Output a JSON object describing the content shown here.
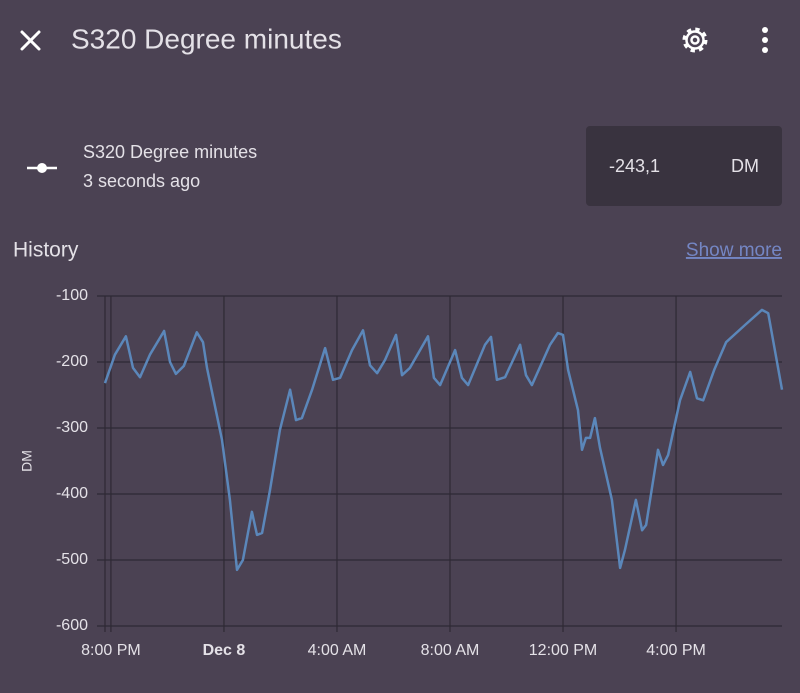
{
  "header": {
    "title": "S320 Degree minutes"
  },
  "entity": {
    "name": "S320 Degree minutes",
    "last_changed": "3 seconds ago",
    "state": "-243,1",
    "unit": "DM"
  },
  "history": {
    "title": "History",
    "show_more": "Show more"
  },
  "chart_data": {
    "type": "line",
    "ylabel": "DM",
    "x": [
      -4.21,
      -3.86,
      -3.47,
      -3.22,
      -2.97,
      -2.62,
      -2.12,
      -1.91,
      -1.7,
      -1.42,
      -0.96,
      -0.74,
      -0.6,
      -0.07,
      0.21,
      0.46,
      0.67,
      0.99,
      1.17,
      1.35,
      1.63,
      1.98,
      2.34,
      2.55,
      2.76,
      3.12,
      3.58,
      3.86,
      4.11,
      4.53,
      4.92,
      5.17,
      5.42,
      5.7,
      6.09,
      6.3,
      6.58,
      7.22,
      7.43,
      7.65,
      8.18,
      8.42,
      8.64,
      9.24,
      9.45,
      9.66,
      9.95,
      10.48,
      10.69,
      10.9,
      11.54,
      11.82,
      12.0,
      12.18,
      12.53,
      12.67,
      12.81,
      12.96,
      13.13,
      13.31,
      13.73,
      14.02,
      14.19,
      14.58,
      14.8,
      14.94,
      15.36,
      15.54,
      15.72,
      16.14,
      16.5,
      16.74,
      16.96,
      17.35,
      17.77,
      18.44,
      19.04,
      19.26,
      19.75
    ],
    "series": [
      {
        "color": "#5b87ba",
        "values": [
          -232,
          -189,
          -161,
          -209,
          -223,
          -189,
          -153,
          -200,
          -218,
          -206,
          -155,
          -170,
          -209,
          -318,
          -409,
          -515,
          -500,
          -427,
          -462,
          -459,
          -394,
          -303,
          -242,
          -288,
          -285,
          -242,
          -179,
          -227,
          -224,
          -182,
          -152,
          -205,
          -217,
          -197,
          -159,
          -220,
          -209,
          -161,
          -224,
          -235,
          -182,
          -224,
          -235,
          -174,
          -162,
          -227,
          -223,
          -174,
          -220,
          -235,
          -174,
          -156,
          -159,
          -212,
          -273,
          -333,
          -315,
          -315,
          -285,
          -330,
          -409,
          -512,
          -485,
          -409,
          -455,
          -447,
          -333,
          -356,
          -341,
          -258,
          -215,
          -255,
          -258,
          -212,
          -170,
          -144,
          -121,
          -126,
          -242
        ]
      }
    ],
    "xlim": [
      -4.21,
      19.75
    ],
    "xticks": [
      {
        "value": -4,
        "label": "8:00 PM"
      },
      {
        "value": 0,
        "label": "Dec 8"
      },
      {
        "value": 4,
        "label": "4:00 AM"
      },
      {
        "value": 8,
        "label": "8:00 AM"
      },
      {
        "value": 12,
        "label": "12:00 PM"
      },
      {
        "value": 16,
        "label": "4:00 PM"
      }
    ],
    "ylim": [
      -600,
      -100
    ],
    "yticks": [
      -100,
      -200,
      -300,
      -400,
      -500,
      -600
    ],
    "grid": true
  }
}
